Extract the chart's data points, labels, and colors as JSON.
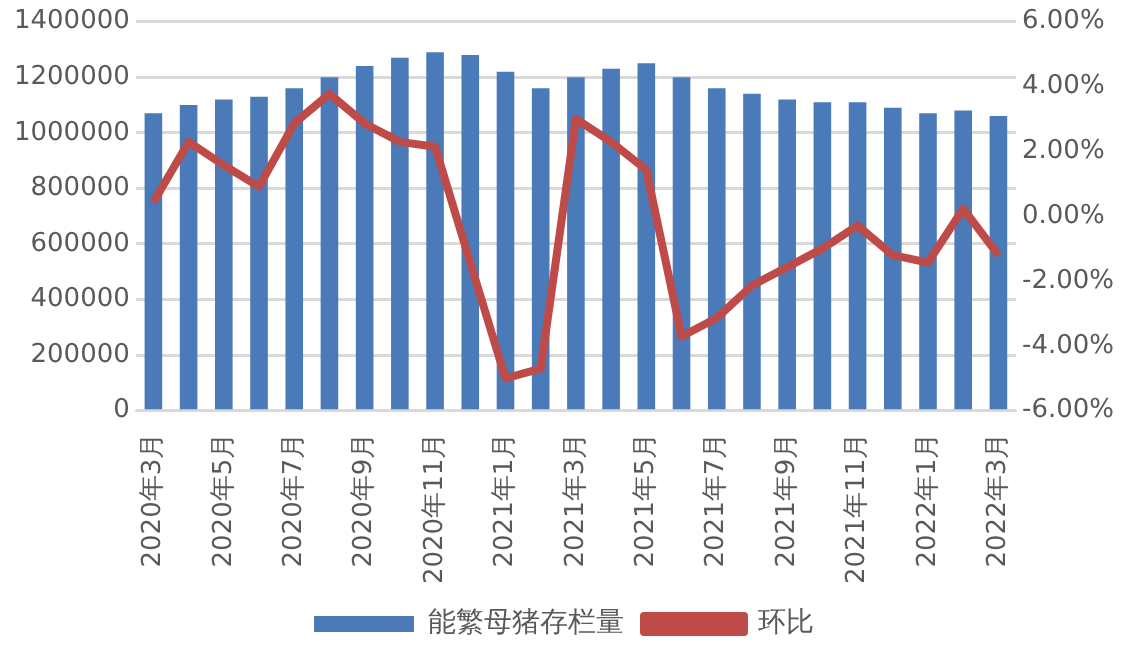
{
  "chart_data": {
    "type": "bar",
    "categories": [
      "2020年3月",
      null,
      "2020年5月",
      null,
      "2020年7月",
      null,
      "2020年9月",
      null,
      "2020年11月",
      null,
      "2021年1月",
      null,
      "2021年3月",
      null,
      "2021年5月",
      null,
      "2021年7月",
      null,
      "2021年9月",
      null,
      "2021年11月",
      null,
      "2022年1月",
      null,
      "2022年3月"
    ],
    "series": [
      {
        "name": "能繁母猪存栏量",
        "color": "#4a7ab8",
        "values": [
          1070000,
          1100000,
          1120000,
          1130000,
          1160000,
          1200000,
          1240000,
          1270000,
          1290000,
          1280000,
          1220000,
          1160000,
          1200000,
          1230000,
          1250000,
          1200000,
          1160000,
          1140000,
          1120000,
          1110000,
          1110000,
          1090000,
          1070000,
          1080000,
          1060000
        ]
      },
      {
        "name": "环比",
        "type": "line",
        "axis": "y2",
        "color": "#be4b48",
        "values": [
          0.43,
          2.29,
          1.57,
          0.91,
          2.86,
          3.77,
          2.86,
          2.29,
          2.14,
          -1.43,
          -5.0,
          -4.7,
          3.0,
          2.29,
          1.43,
          -3.71,
          -3.14,
          -2.14,
          -1.57,
          -1.0,
          -0.29,
          -1.2,
          -1.43,
          0.23,
          -1.2
        ]
      }
    ],
    "ylim": [
      0,
      1400000
    ],
    "yticks": [
      0,
      200000,
      400000,
      600000,
      800000,
      1000000,
      1200000,
      1400000
    ],
    "y2lim": [
      -6,
      6
    ],
    "y2ticks": [
      {
        "value": -6,
        "label": "-6.00%"
      },
      {
        "value": -4,
        "label": "-4.00%"
      },
      {
        "value": -2,
        "label": "-2.00%"
      },
      {
        "value": 0,
        "label": "0.00%"
      },
      {
        "value": 2,
        "label": "2.00%"
      },
      {
        "value": 4,
        "label": "4.00%"
      },
      {
        "value": 6,
        "label": "6.00%"
      }
    ],
    "grid": "y",
    "legend": "bottom",
    "marker": "none"
  }
}
